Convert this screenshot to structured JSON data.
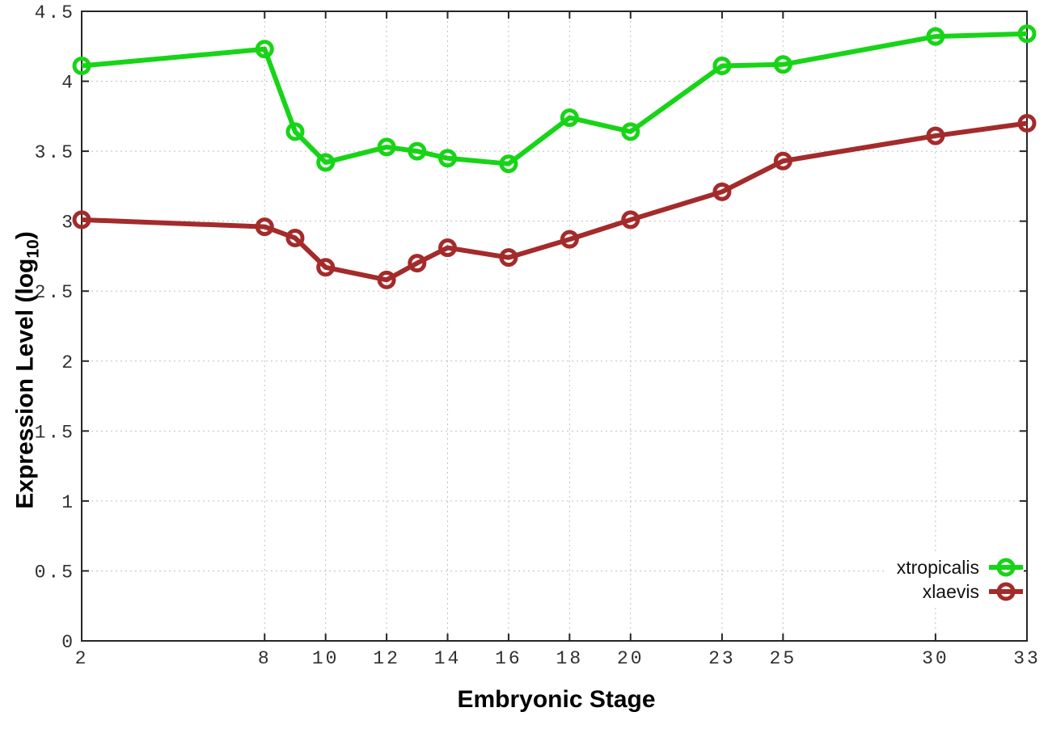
{
  "chart_data": {
    "type": "line",
    "xlabel": "Embryonic Stage",
    "ylabel": "Expression Level (log10)",
    "ylabel_parts": {
      "prefix": "Expression Level (log",
      "sub": "10",
      "suffix": ")"
    },
    "x": [
      2,
      8,
      9,
      10,
      12,
      13,
      14,
      16,
      18,
      20,
      23,
      25,
      30,
      33
    ],
    "xlim": [
      2,
      33
    ],
    "ylim": [
      0,
      4.5
    ],
    "xticks": [
      2,
      8,
      10,
      12,
      14,
      16,
      18,
      20,
      23,
      25,
      30,
      33
    ],
    "yticks": [
      0,
      0.5,
      1,
      1.5,
      2,
      2.5,
      3,
      3.5,
      4,
      4.5
    ],
    "grid": true,
    "legend_position": "bottom-right",
    "series": [
      {
        "name": "xtropicalis",
        "color": "#17d417",
        "values": [
          4.11,
          4.23,
          3.64,
          3.42,
          3.53,
          3.5,
          3.45,
          3.41,
          3.74,
          3.64,
          4.11,
          4.12,
          4.32,
          4.34
        ]
      },
      {
        "name": "xlaevis",
        "color": "#a42b2b",
        "values": [
          3.01,
          2.96,
          2.88,
          2.67,
          2.58,
          2.7,
          2.81,
          2.74,
          2.87,
          3.01,
          3.21,
          3.43,
          3.61,
          3.7
        ]
      }
    ],
    "style": {
      "axis_color": "#262626",
      "grid_color": "#bfbfbf",
      "tick_label_color": "#303030"
    }
  }
}
